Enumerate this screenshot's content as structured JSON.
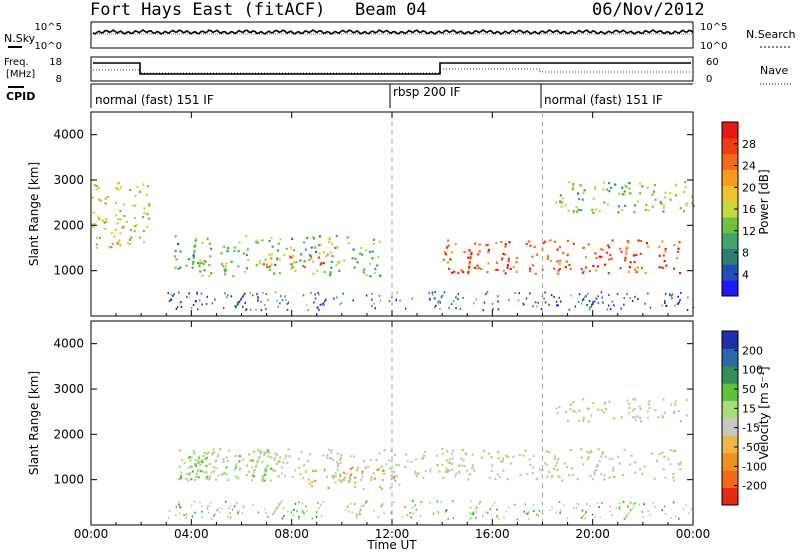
{
  "header": {
    "station": "Fort Hays East (fitACF)",
    "beam": "Beam 04",
    "date": "06/Nov/2012"
  },
  "left_labels": {
    "nsky": "N.Sky",
    "freq_line1": "Freq.",
    "freq_line2": "[MHz]",
    "cpid": "CPID"
  },
  "right_labels": {
    "nsearch": "N.Search",
    "nave": "Nave"
  },
  "noise_panel": {
    "left_ticks": [
      "10^5",
      "10^0"
    ],
    "right_ticks": [
      "10^5",
      "10^0"
    ]
  },
  "freq_panel": {
    "left_ticks": [
      "18",
      "8"
    ],
    "right_ticks": [
      "60",
      "0"
    ]
  },
  "cpid_segments": [
    {
      "label": "normal (fast) 151 IF",
      "start_hour": 0
    },
    {
      "label": "rbsp 200 IF",
      "start_hour": 12
    },
    {
      "label": "normal (fast) 151 IF",
      "start_hour": 18
    }
  ],
  "axes": {
    "xlabel": "Time UT",
    "ylabel": "Slant Range [km]",
    "x_ticks": [
      "00:00",
      "04:00",
      "08:00",
      "12:00",
      "16:00",
      "20:00",
      "00:00"
    ],
    "y_ticks": [
      "1000",
      "2000",
      "3000",
      "4000"
    ]
  },
  "power_colorbar": {
    "label": "Power [dB]",
    "ticks": [
      "4",
      "8",
      "12",
      "16",
      "20",
      "24",
      "28"
    ],
    "colors": [
      "#1a1aff",
      "#1f4fb5",
      "#2e7d6e",
      "#3fa66b",
      "#6fc23d",
      "#c8d640",
      "#f2c12e",
      "#f79a1e",
      "#f36a18",
      "#ef3d12",
      "#e51a10"
    ]
  },
  "velocity_colorbar": {
    "label": "Velocity [m s⁻¹]",
    "ticks": [
      "200",
      "100",
      "50",
      "15",
      "-15",
      "-50",
      "-100",
      "-200"
    ],
    "colors": [
      "#1d2fb0",
      "#2b6aa8",
      "#2f8f5a",
      "#5cc43a",
      "#a8dc7a",
      "#c8c8c0",
      "#f0b34a",
      "#f09020",
      "#f06a18",
      "#e52a12"
    ]
  },
  "chart_data": [
    {
      "type": "heatmap",
      "title": "Power",
      "xlabel": "Time UT",
      "ylabel": "Slant Range [km]",
      "xlim": [
        0,
        24
      ],
      "ylim": [
        0,
        4500
      ],
      "colorbar_range": [
        0,
        30
      ],
      "features": [
        {
          "name": "morning-band",
          "t0": 0,
          "t1": 2.3,
          "r0": 1500,
          "r1": 3000,
          "value": 16
        },
        {
          "name": "evening-band",
          "t0": 3.3,
          "t1": 11.5,
          "r0": 900,
          "r1": 1800,
          "value": 12
        },
        {
          "name": "peak-patch",
          "t0": 6.8,
          "t1": 9.2,
          "r0": 1100,
          "r1": 1350,
          "value": 24
        },
        {
          "name": "night-strong-band",
          "t0": 14,
          "t1": 23.5,
          "r0": 950,
          "r1": 1700,
          "value": 26
        },
        {
          "name": "upper-echo",
          "t0": 18.5,
          "t1": 24,
          "r0": 2300,
          "r1": 3000,
          "value": 12
        }
      ]
    },
    {
      "type": "heatmap",
      "title": "Velocity",
      "xlabel": "Time UT",
      "ylabel": "Slant Range [km]",
      "xlim": [
        0,
        24
      ],
      "ylim": [
        0,
        4500
      ],
      "colorbar_range": [
        -200,
        200
      ],
      "features": [
        {
          "name": "ground-scatter-band",
          "t0": 3.3,
          "t1": 23.5,
          "r0": 1000,
          "r1": 1700,
          "value": 0
        },
        {
          "name": "positive-patch",
          "t0": 3.5,
          "t1": 7.5,
          "r0": 1000,
          "r1": 1700,
          "value": 40
        },
        {
          "name": "negative-patch",
          "t0": 8.5,
          "t1": 12.5,
          "r0": 800,
          "r1": 1300,
          "value": -60
        },
        {
          "name": "upper-echo",
          "t0": 18.5,
          "t1": 24,
          "r0": 2300,
          "r1": 2800,
          "value": 0
        }
      ]
    }
  ]
}
